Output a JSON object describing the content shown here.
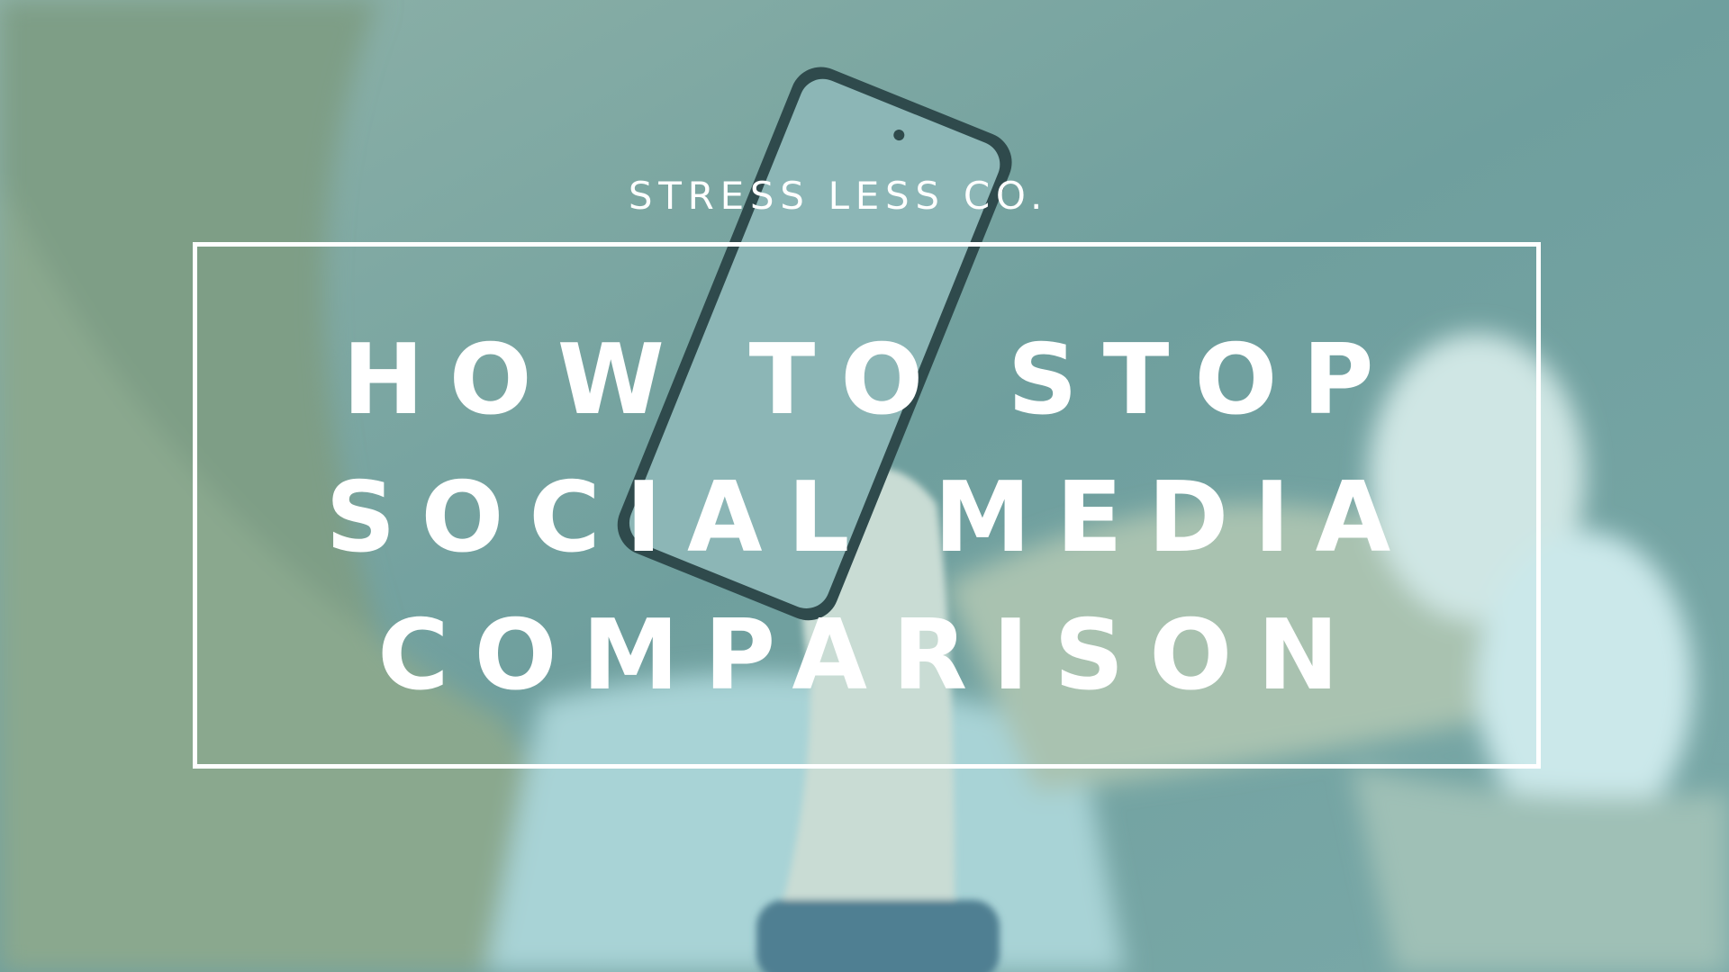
{
  "brand": "STRESS LESS CO.",
  "title": {
    "lines": [
      "HOW TO STOP",
      "SOCIAL MEDIA",
      "COMPARISON"
    ]
  }
}
